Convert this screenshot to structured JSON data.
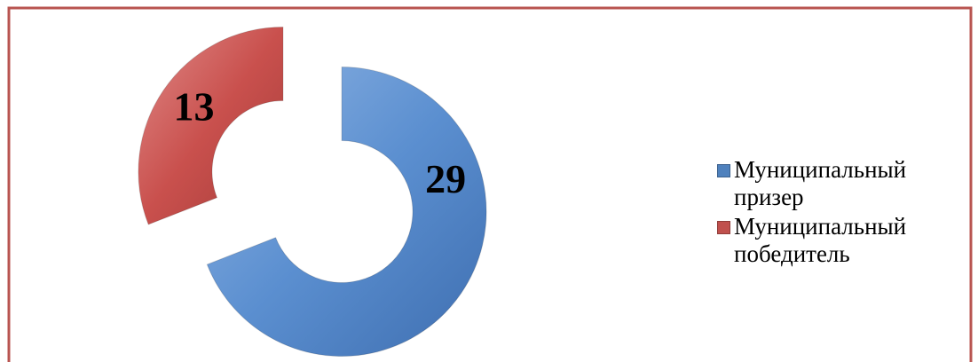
{
  "chart_data": {
    "type": "donut",
    "categories": [
      "Муниципальный призер",
      "Муниципальный победитель"
    ],
    "values": [
      29,
      13
    ],
    "colors": [
      "#4f81bd",
      "#c0504d"
    ],
    "legend": "right"
  }
}
